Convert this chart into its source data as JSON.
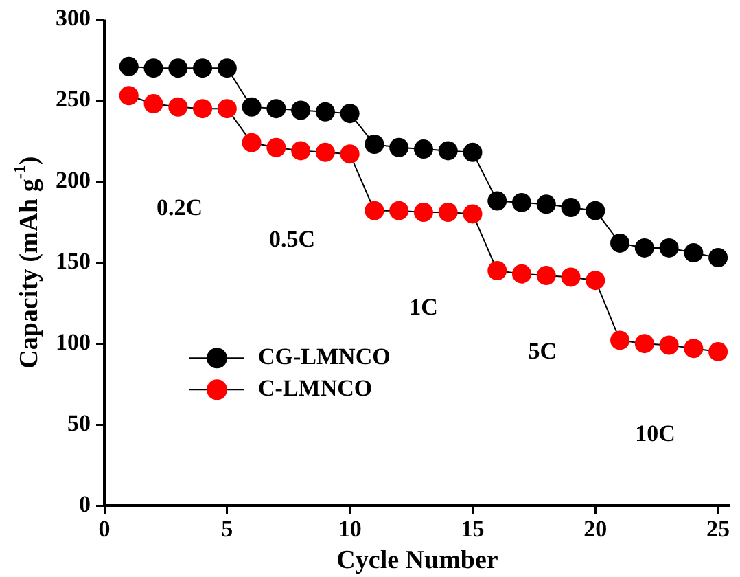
{
  "chart_data": {
    "type": "line",
    "xlabel": "Cycle Number",
    "ylabel": "Capacity (mAh g$^{-1}$)",
    "x": [
      1,
      2,
      3,
      4,
      5,
      6,
      7,
      8,
      9,
      10,
      11,
      12,
      13,
      14,
      15,
      16,
      17,
      18,
      19,
      20,
      21,
      22,
      23,
      24,
      25
    ],
    "series": [
      {
        "name": "CG-LMNCO",
        "color": "#000000",
        "values": [
          271,
          270,
          270,
          270,
          270,
          246,
          245,
          244,
          243,
          242,
          223,
          221,
          220,
          219,
          218,
          188,
          187,
          186,
          184,
          182,
          162,
          159,
          159,
          156,
          153
        ]
      },
      {
        "name": "C-LMNCO",
        "color": "#ff0000",
        "values": [
          253,
          248,
          246,
          245,
          245,
          224,
          221,
          219,
          218,
          217,
          182,
          182,
          181,
          181,
          180,
          145,
          143,
          142,
          141,
          139,
          102,
          100,
          99,
          97,
          95
        ]
      }
    ],
    "xlim": [
      0,
      25.5
    ],
    "xticks": [
      0,
      5,
      10,
      15,
      20,
      25
    ],
    "ylim": [
      0,
      300
    ],
    "yticks": [
      0,
      50,
      100,
      150,
      200,
      250,
      300
    ],
    "annotations": [
      "0.2C",
      "0.5C",
      "1C",
      "5C",
      "10C"
    ],
    "legend": "left",
    "marker": "circle",
    "grid": false
  }
}
